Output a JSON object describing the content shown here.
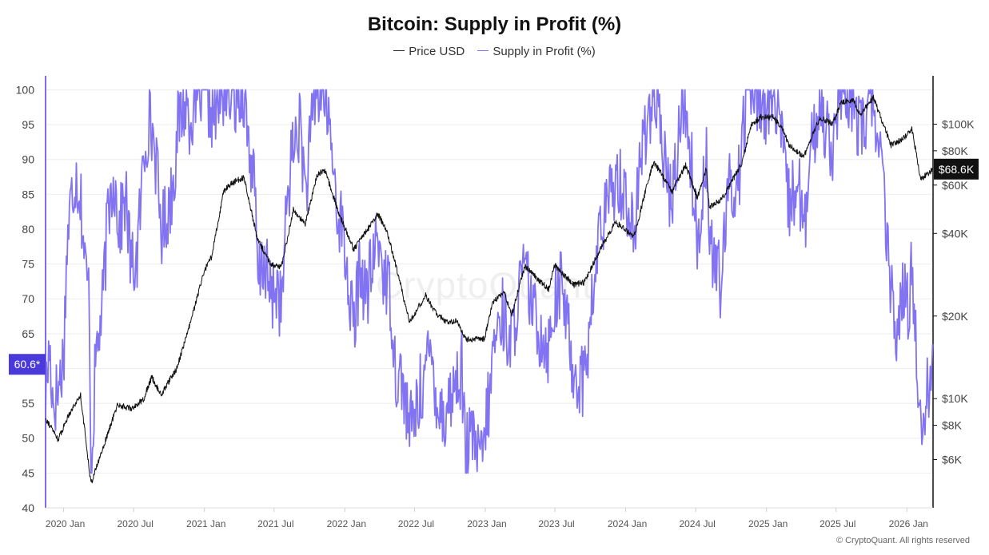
{
  "chart_data": {
    "type": "line",
    "title": "Bitcoin: Supply in Profit (%)",
    "legend_position": "top-center",
    "grid": true,
    "x_ticks": [
      "2020 Jan",
      "2020 Jul",
      "2021 Jan",
      "2021 Jul",
      "2022 Jan",
      "2022 Jul",
      "2023 Jan",
      "2023 Jul",
      "2024 Jan",
      "2024 Jul",
      "2025 Jan",
      "2025 Jul",
      "2026 Jan"
    ],
    "x_range": [
      "2019-11-15",
      "2026-03-10"
    ],
    "left_axis": {
      "ylim": [
        40,
        102
      ],
      "ticks": [
        40,
        45,
        50,
        55,
        60,
        65,
        70,
        75,
        80,
        85,
        90,
        95,
        100
      ]
    },
    "right_axis": {
      "scale": "log",
      "ylim": [
        4000,
        150000
      ],
      "ticks": [
        6000,
        8000,
        10000,
        20000,
        40000,
        60000,
        80000,
        100000
      ],
      "tick_labels": [
        "$6K",
        "$8K",
        "$10K",
        "$20K",
        "$40K",
        "$60K",
        "$80K",
        "$100K"
      ]
    },
    "series": [
      {
        "name": "Price USD",
        "axis": "right",
        "color": "#111111",
        "points": [
          [
            "2019-11-15",
            8500
          ],
          [
            "2019-12-18",
            7100
          ],
          [
            "2020-01-15",
            8800
          ],
          [
            "2020-02-14",
            10300
          ],
          [
            "2020-03-12",
            4900
          ],
          [
            "2020-04-15",
            6800
          ],
          [
            "2020-05-20",
            9500
          ],
          [
            "2020-06-25",
            9200
          ],
          [
            "2020-07-26",
            9900
          ],
          [
            "2020-08-17",
            12000
          ],
          [
            "2020-09-10",
            10300
          ],
          [
            "2020-10-21",
            12900
          ],
          [
            "2020-11-25",
            18800
          ],
          [
            "2020-12-31",
            29000
          ],
          [
            "2021-01-20",
            33000
          ],
          [
            "2021-02-20",
            57000
          ],
          [
            "2021-03-13",
            61000
          ],
          [
            "2021-04-14",
            64000
          ],
          [
            "2021-05-19",
            38000
          ],
          [
            "2021-06-22",
            31000
          ],
          [
            "2021-07-20",
            30000
          ],
          [
            "2021-08-20",
            49000
          ],
          [
            "2021-09-20",
            43000
          ],
          [
            "2021-10-20",
            65000
          ],
          [
            "2021-11-10",
            68000
          ],
          [
            "2021-12-15",
            48000
          ],
          [
            "2022-01-24",
            35000
          ],
          [
            "2022-03-28",
            47000
          ],
          [
            "2022-04-20",
            41000
          ],
          [
            "2022-05-15",
            30000
          ],
          [
            "2022-06-18",
            19000
          ],
          [
            "2022-07-30",
            23800
          ],
          [
            "2022-08-20",
            21000
          ],
          [
            "2022-09-20",
            19000
          ],
          [
            "2022-10-20",
            19200
          ],
          [
            "2022-11-10",
            16500
          ],
          [
            "2022-12-30",
            16500
          ],
          [
            "2023-01-20",
            22500
          ],
          [
            "2023-02-20",
            24500
          ],
          [
            "2023-03-10",
            20000
          ],
          [
            "2023-04-14",
            30500
          ],
          [
            "2023-05-20",
            27000
          ],
          [
            "2023-06-15",
            25000
          ],
          [
            "2023-06-30",
            30500
          ],
          [
            "2023-08-20",
            26000
          ],
          [
            "2023-09-15",
            26500
          ],
          [
            "2023-10-25",
            34500
          ],
          [
            "2023-12-05",
            44000
          ],
          [
            "2024-01-23",
            39000
          ],
          [
            "2024-02-28",
            62000
          ],
          [
            "2024-03-14",
            73000
          ],
          [
            "2024-05-01",
            57000
          ],
          [
            "2024-06-05",
            71000
          ],
          [
            "2024-07-05",
            54000
          ],
          [
            "2024-07-29",
            69000
          ],
          [
            "2024-08-05",
            50000
          ],
          [
            "2024-09-06",
            53000
          ],
          [
            "2024-10-29",
            72000
          ],
          [
            "2024-11-22",
            99000
          ],
          [
            "2024-12-17",
            106000
          ],
          [
            "2025-01-20",
            106000
          ],
          [
            "2025-02-10",
            97000
          ],
          [
            "2025-03-01",
            84000
          ],
          [
            "2025-04-08",
            76000
          ],
          [
            "2025-05-20",
            106000
          ],
          [
            "2025-06-22",
            100000
          ],
          [
            "2025-07-14",
            120000
          ],
          [
            "2025-08-14",
            123000
          ],
          [
            "2025-09-01",
            108000
          ],
          [
            "2025-10-06",
            125000
          ],
          [
            "2025-11-21",
            84000
          ],
          [
            "2025-12-20",
            88000
          ],
          [
            "2026-01-14",
            96000
          ],
          [
            "2026-02-06",
            63000
          ],
          [
            "2026-02-25",
            66000
          ],
          [
            "2026-03-10",
            68600
          ]
        ]
      },
      {
        "name": "Supply in Profit (%)",
        "axis": "left",
        "color": "#7b6cf2",
        "points": [
          [
            "2019-11-15",
            56
          ],
          [
            "2019-11-25",
            63
          ],
          [
            "2019-12-05",
            55
          ],
          [
            "2019-12-18",
            57
          ],
          [
            "2020-01-01",
            62
          ],
          [
            "2020-01-10",
            78
          ],
          [
            "2020-01-20",
            84
          ],
          [
            "2020-02-01",
            88
          ],
          [
            "2020-02-14",
            85
          ],
          [
            "2020-02-25",
            75
          ],
          [
            "2020-03-08",
            70
          ],
          [
            "2020-03-12",
            45
          ],
          [
            "2020-03-25",
            62
          ],
          [
            "2020-04-10",
            68
          ],
          [
            "2020-04-25",
            82
          ],
          [
            "2020-05-10",
            88
          ],
          [
            "2020-05-25",
            80
          ],
          [
            "2020-06-10",
            85
          ],
          [
            "2020-06-25",
            74
          ],
          [
            "2020-07-10",
            76
          ],
          [
            "2020-07-28",
            91
          ],
          [
            "2020-08-10",
            96
          ],
          [
            "2020-08-25",
            92
          ],
          [
            "2020-09-10",
            80
          ],
          [
            "2020-09-25",
            82
          ],
          [
            "2020-10-10",
            86
          ],
          [
            "2020-10-25",
            95
          ],
          [
            "2020-11-10",
            98
          ],
          [
            "2020-11-25",
            96
          ],
          [
            "2020-12-10",
            99
          ],
          [
            "2020-12-31",
            100
          ],
          [
            "2021-01-25",
            96
          ],
          [
            "2021-02-20",
            100
          ],
          [
            "2021-03-15",
            99
          ],
          [
            "2021-04-14",
            100
          ],
          [
            "2021-04-25",
            93
          ],
          [
            "2021-05-12",
            85
          ],
          [
            "2021-05-20",
            72
          ],
          [
            "2021-06-05",
            76
          ],
          [
            "2021-06-22",
            70
          ],
          [
            "2021-07-10",
            72
          ],
          [
            "2021-07-20",
            68
          ],
          [
            "2021-08-05",
            85
          ],
          [
            "2021-08-20",
            92
          ],
          [
            "2021-09-07",
            95
          ],
          [
            "2021-09-21",
            85
          ],
          [
            "2021-10-15",
            99
          ],
          [
            "2021-11-10",
            100
          ],
          [
            "2021-11-25",
            93
          ],
          [
            "2021-12-10",
            84
          ],
          [
            "2021-12-25",
            80
          ],
          [
            "2022-01-10",
            72
          ],
          [
            "2022-01-24",
            65
          ],
          [
            "2022-02-10",
            75
          ],
          [
            "2022-02-25",
            70
          ],
          [
            "2022-03-28",
            79
          ],
          [
            "2022-04-15",
            73
          ],
          [
            "2022-05-01",
            70
          ],
          [
            "2022-05-12",
            60
          ],
          [
            "2022-06-01",
            58
          ],
          [
            "2022-06-18",
            51
          ],
          [
            "2022-07-05",
            54
          ],
          [
            "2022-07-30",
            60
          ],
          [
            "2022-08-15",
            62
          ],
          [
            "2022-08-30",
            55
          ],
          [
            "2022-09-15",
            53
          ],
          [
            "2022-10-10",
            57
          ],
          [
            "2022-11-01",
            60
          ],
          [
            "2022-11-10",
            48
          ],
          [
            "2022-12-01",
            50
          ],
          [
            "2022-12-20",
            46
          ],
          [
            "2023-01-10",
            55
          ],
          [
            "2023-01-25",
            64
          ],
          [
            "2023-02-15",
            68
          ],
          [
            "2023-03-10",
            63
          ],
          [
            "2023-03-25",
            70
          ],
          [
            "2023-04-14",
            74
          ],
          [
            "2023-05-10",
            67
          ],
          [
            "2023-06-15",
            63
          ],
          [
            "2023-06-30",
            70
          ],
          [
            "2023-07-20",
            72
          ],
          [
            "2023-08-17",
            60
          ],
          [
            "2023-09-11",
            58
          ],
          [
            "2023-10-01",
            66
          ],
          [
            "2023-10-25",
            80
          ],
          [
            "2023-11-15",
            83
          ],
          [
            "2023-12-08",
            88
          ],
          [
            "2024-01-01",
            85
          ],
          [
            "2024-01-23",
            79
          ],
          [
            "2024-02-15",
            93
          ],
          [
            "2024-03-14",
            100
          ],
          [
            "2024-04-01",
            93
          ],
          [
            "2024-05-01",
            83
          ],
          [
            "2024-05-20",
            96
          ],
          [
            "2024-06-05",
            98
          ],
          [
            "2024-06-25",
            86
          ],
          [
            "2024-07-05",
            77
          ],
          [
            "2024-07-29",
            92
          ],
          [
            "2024-08-05",
            78
          ],
          [
            "2024-09-06",
            72
          ],
          [
            "2024-09-27",
            87
          ],
          [
            "2024-10-15",
            85
          ],
          [
            "2024-10-29",
            92
          ],
          [
            "2024-11-12",
            100
          ],
          [
            "2024-12-17",
            99
          ],
          [
            "2025-01-05",
            97
          ],
          [
            "2025-01-20",
            99
          ],
          [
            "2025-02-10",
            92
          ],
          [
            "2025-03-01",
            83
          ],
          [
            "2025-03-25",
            88
          ],
          [
            "2025-04-08",
            78
          ],
          [
            "2025-04-25",
            90
          ],
          [
            "2025-05-20",
            98
          ],
          [
            "2025-06-22",
            92
          ],
          [
            "2025-07-14",
            100
          ],
          [
            "2025-07-28",
            98
          ],
          [
            "2025-08-14",
            99
          ],
          [
            "2025-09-01",
            94
          ],
          [
            "2025-10-06",
            99
          ],
          [
            "2025-10-25",
            90
          ],
          [
            "2025-11-05",
            82
          ],
          [
            "2025-11-21",
            70
          ],
          [
            "2025-12-10",
            65
          ],
          [
            "2025-12-20",
            71
          ],
          [
            "2026-01-05",
            68
          ],
          [
            "2026-01-14",
            76
          ],
          [
            "2026-01-25",
            63
          ],
          [
            "2026-02-06",
            52
          ],
          [
            "2026-02-18",
            55
          ],
          [
            "2026-02-28",
            58
          ],
          [
            "2026-03-05",
            61
          ],
          [
            "2026-03-10",
            60.6
          ]
        ]
      }
    ],
    "current_labels": {
      "left": "60.6*",
      "right": "$68.6K"
    }
  },
  "copyright": "© CryptoQuant. All rights reserved",
  "watermark": "CryptoQuant",
  "colors": {
    "purple": "#7b6cf2",
    "black": "#111111",
    "badge_left": "#4a3adb",
    "badge_right": "#111111"
  }
}
